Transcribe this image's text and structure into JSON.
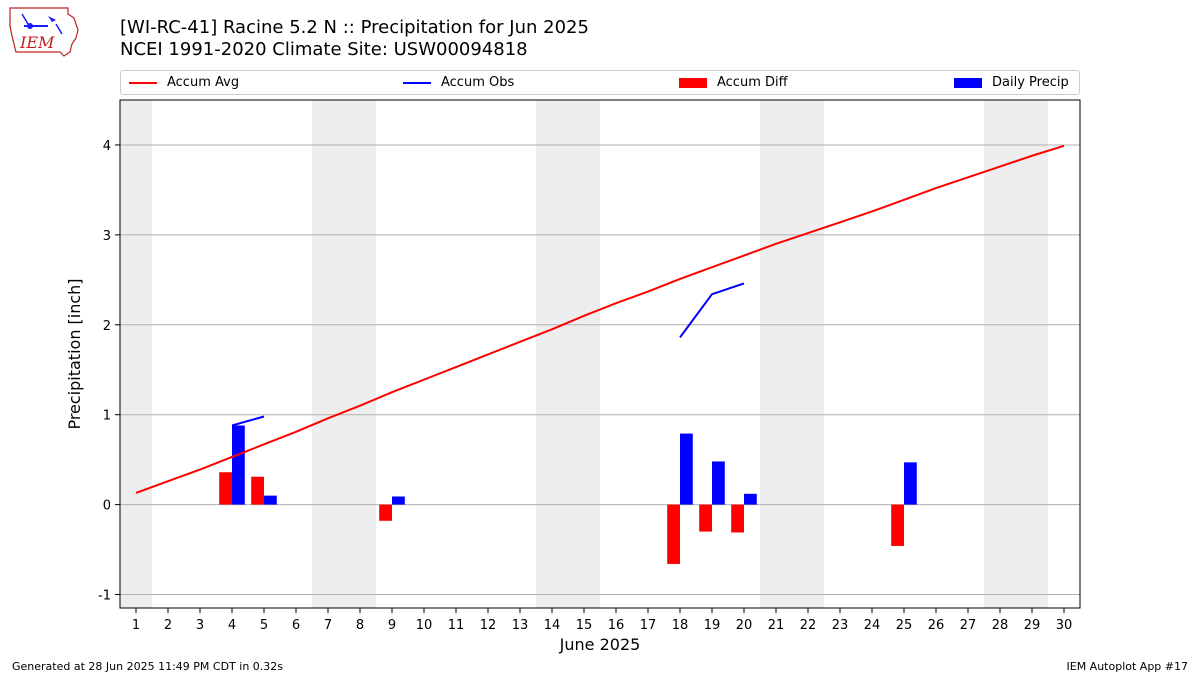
{
  "header": {
    "title_line1": "[WI-RC-41] Racine 5.2 N :: Precipitation for Jun 2025",
    "title_line2": "NCEI 1991-2020 Climate Site: USW00094818"
  },
  "logo": {
    "text": "IEM"
  },
  "legend": {
    "accum_avg": "Accum Avg",
    "accum_obs": "Accum Obs",
    "accum_diff": "Accum Diff",
    "daily_precip": "Daily Precip"
  },
  "footer": {
    "generated": "Generated at 28 Jun 2025 11:49 PM CDT in 0.32s",
    "app": "IEM Autoplot App #17"
  },
  "colors": {
    "accum_avg": "#ff0000",
    "accum_obs": "#0000ff",
    "accum_diff": "#ff0000",
    "daily_precip": "#0000ff",
    "weekend_shade": "#eeeeee",
    "grid": "#b0b0b0"
  },
  "chart_data": {
    "type": "bar",
    "xlabel": "June 2025",
    "ylabel": "Precipitation [inch]",
    "xlim": [
      0.5,
      30.5
    ],
    "ylim": [
      -1.15,
      4.5
    ],
    "yticks": [
      -1,
      0,
      1,
      2,
      3,
      4
    ],
    "xticks": [
      1,
      2,
      3,
      4,
      5,
      6,
      7,
      8,
      9,
      10,
      11,
      12,
      13,
      14,
      15,
      16,
      17,
      18,
      19,
      20,
      21,
      22,
      23,
      24,
      25,
      26,
      27,
      28,
      29,
      30
    ],
    "grid": "horizontal",
    "legend_position": "top",
    "weekend_shading": [
      [
        0.5,
        1.5
      ],
      [
        6.5,
        8.5
      ],
      [
        13.5,
        15.5
      ],
      [
        20.5,
        22.5
      ],
      [
        27.5,
        29.5
      ]
    ],
    "accum_avg": {
      "name": "Accum Avg",
      "x": [
        1,
        2,
        3,
        4,
        5,
        6,
        7,
        8,
        9,
        10,
        11,
        12,
        13,
        14,
        15,
        16,
        17,
        18,
        19,
        20,
        21,
        22,
        23,
        24,
        25,
        26,
        27,
        28,
        29,
        30
      ],
      "values": [
        0.13,
        0.26,
        0.39,
        0.53,
        0.67,
        0.81,
        0.96,
        1.1,
        1.25,
        1.39,
        1.53,
        1.67,
        1.81,
        1.95,
        2.1,
        2.24,
        2.37,
        2.51,
        2.64,
        2.77,
        2.9,
        3.02,
        3.14,
        3.26,
        3.39,
        3.52,
        3.64,
        3.76,
        3.88,
        3.99
      ]
    },
    "accum_obs": {
      "name": "Accum Obs",
      "segments": [
        {
          "x": [
            4,
            5
          ],
          "values": [
            0.88,
            0.98
          ]
        },
        {
          "x": [
            18,
            19,
            20
          ],
          "values": [
            1.86,
            2.34,
            2.46
          ]
        }
      ]
    },
    "accum_diff": {
      "name": "Accum Diff",
      "x": [
        4,
        5,
        9,
        18,
        19,
        20,
        25
      ],
      "values": [
        0.36,
        0.31,
        -0.18,
        -0.66,
        -0.3,
        -0.31,
        -0.46
      ]
    },
    "daily_precip": {
      "name": "Daily Precip",
      "x": [
        4,
        5,
        9,
        18,
        19,
        20,
        25
      ],
      "values": [
        0.88,
        0.1,
        0.09,
        0.79,
        0.48,
        0.12,
        0.47
      ]
    }
  }
}
